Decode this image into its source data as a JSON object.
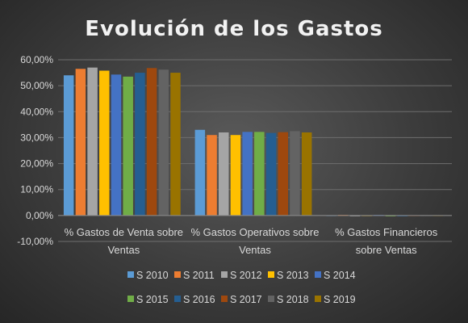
{
  "chart_data": {
    "type": "bar",
    "title": "Evolución de los Gastos",
    "categories": [
      "%  Gastos de Venta sobre Ventas",
      "%  Gastos Operativos sobre Ventas",
      "%  Gastos Financieros sobre Ventas"
    ],
    "category_lines": [
      [
        "%  Gastos de Venta sobre",
        "Ventas"
      ],
      [
        "%  Gastos Operativos sobre",
        "Ventas"
      ],
      [
        "%  Gastos Financieros",
        "sobre Ventas"
      ]
    ],
    "ylim": [
      -10,
      60
    ],
    "yticks": [
      -10,
      0,
      10,
      20,
      30,
      40,
      50,
      60
    ],
    "ytick_labels": [
      "-10,00%",
      "0,00%",
      "10,00%",
      "20,00%",
      "30,00%",
      "40,00%",
      "50,00%",
      "60,00%"
    ],
    "grid": true,
    "legend_position": "bottom",
    "series": [
      {
        "name": "S 2010",
        "color": "#5b9bd5",
        "values": [
          54.0,
          33.0,
          0.1
        ]
      },
      {
        "name": "S 2011",
        "color": "#ed7d31",
        "values": [
          56.5,
          31.0,
          0.2
        ]
      },
      {
        "name": "S 2012",
        "color": "#a5a5a5",
        "values": [
          57.0,
          32.0,
          -0.2
        ]
      },
      {
        "name": "S 2013",
        "color": "#ffc000",
        "values": [
          55.8,
          31.0,
          0.1
        ]
      },
      {
        "name": "S 2014",
        "color": "#4472c4",
        "values": [
          54.3,
          32.2,
          0.2
        ]
      },
      {
        "name": "S 2015",
        "color": "#70ad47",
        "values": [
          53.5,
          32.2,
          -0.2
        ]
      },
      {
        "name": "S 2016",
        "color": "#255e91",
        "values": [
          55.0,
          31.8,
          -0.2
        ]
      },
      {
        "name": "S 2017",
        "color": "#9e480e",
        "values": [
          56.8,
          32.1,
          0.1
        ]
      },
      {
        "name": "S 2018",
        "color": "#636363",
        "values": [
          56.2,
          32.5,
          0.1
        ]
      },
      {
        "name": "S 2019",
        "color": "#997300",
        "values": [
          55.0,
          32.0,
          0.1
        ]
      }
    ]
  }
}
